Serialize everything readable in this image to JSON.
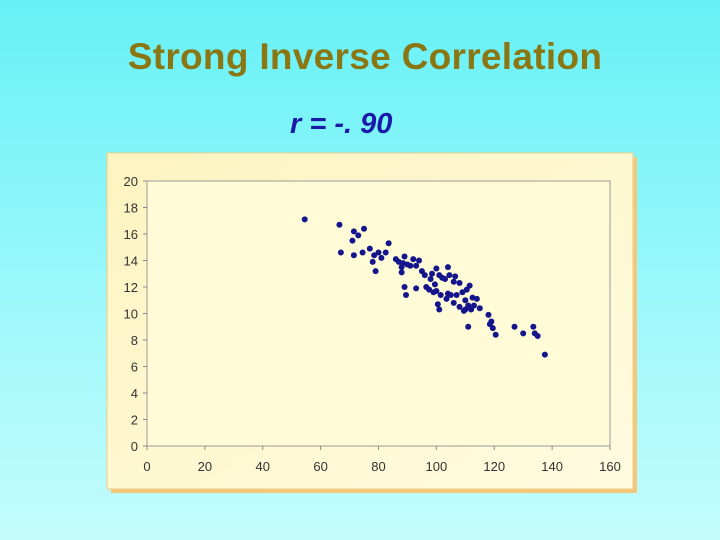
{
  "slide": {
    "title": "Strong Inverse Correlation",
    "subtitle": "r = -. 90"
  },
  "colors": {
    "background_top": "#66f1f6",
    "background_bottom": "#c4fcfd",
    "title": "#8a7612",
    "subtitle": "#1a1aa8",
    "chart_area": "#fef8c8",
    "plot_area": "#fefbd6",
    "marker": "#14148c"
  },
  "chart_data": {
    "type": "scatter",
    "title": "",
    "xlabel": "",
    "ylabel": "",
    "xlim": [
      0,
      160
    ],
    "ylim": [
      0,
      20
    ],
    "x_ticks": [
      0,
      20,
      40,
      60,
      80,
      100,
      120,
      140,
      160
    ],
    "y_ticks": [
      0,
      2,
      4,
      6,
      8,
      10,
      12,
      14,
      16,
      18,
      20
    ],
    "grid": false,
    "legend": "none",
    "points": [
      [
        54.5,
        17.1
      ],
      [
        66.5,
        16.7
      ],
      [
        67,
        14.6
      ],
      [
        71,
        15.5
      ],
      [
        71.5,
        16.2
      ],
      [
        71.5,
        14.4
      ],
      [
        73,
        15.9
      ],
      [
        74.5,
        14.6
      ],
      [
        75,
        16.4
      ],
      [
        77,
        14.9
      ],
      [
        78,
        13.9
      ],
      [
        78.5,
        14.4
      ],
      [
        79,
        13.2
      ],
      [
        80,
        14.6
      ],
      [
        81,
        14.2
      ],
      [
        82.5,
        14.6
      ],
      [
        83.5,
        15.3
      ],
      [
        86,
        14.1
      ],
      [
        87,
        13.9
      ],
      [
        88,
        13.5
      ],
      [
        88.5,
        13.8
      ],
      [
        89,
        14.3
      ],
      [
        90,
        13.7
      ],
      [
        91,
        13.6
      ],
      [
        92,
        14.1
      ],
      [
        93,
        13.6
      ],
      [
        94,
        14.0
      ],
      [
        88,
        13.1
      ],
      [
        89,
        12.0
      ],
      [
        89.5,
        11.4
      ],
      [
        93,
        11.9
      ],
      [
        95,
        13.2
      ],
      [
        96,
        12.9
      ],
      [
        96.5,
        12.0
      ],
      [
        97.5,
        11.8
      ],
      [
        98,
        12.6
      ],
      [
        98.5,
        13.0
      ],
      [
        99,
        11.6
      ],
      [
        99.5,
        12.2
      ],
      [
        100,
        13.4
      ],
      [
        100,
        11.7
      ],
      [
        101,
        12.9
      ],
      [
        101.5,
        11.4
      ],
      [
        102,
        12.7
      ],
      [
        103,
        12.6
      ],
      [
        103.5,
        11.1
      ],
      [
        100.5,
        10.7
      ],
      [
        101,
        10.3
      ],
      [
        104,
        11.5
      ],
      [
        104.5,
        12.9
      ],
      [
        105,
        11.4
      ],
      [
        106,
        10.8
      ],
      [
        106.5,
        12.8
      ],
      [
        107,
        11.4
      ],
      [
        108,
        10.5
      ],
      [
        109,
        11.6
      ],
      [
        109.5,
        10.2
      ],
      [
        110,
        11.0
      ],
      [
        110.5,
        11.8
      ],
      [
        111,
        10.6
      ],
      [
        111.5,
        12.1
      ],
      [
        112,
        10.3
      ],
      [
        112.5,
        11.2
      ],
      [
        113,
        10.6
      ],
      [
        114,
        11.1
      ],
      [
        115,
        10.4
      ],
      [
        104,
        13.5
      ],
      [
        106,
        12.4
      ],
      [
        108,
        12.3
      ],
      [
        110,
        10.3
      ],
      [
        111,
        9.0
      ],
      [
        118,
        9.9
      ],
      [
        118.5,
        9.2
      ],
      [
        119,
        9.4
      ],
      [
        119.5,
        8.9
      ],
      [
        120.5,
        8.4
      ],
      [
        127,
        9.0
      ],
      [
        130,
        8.5
      ],
      [
        133.5,
        9.0
      ],
      [
        134,
        8.5
      ],
      [
        135,
        8.3
      ],
      [
        137.5,
        6.9
      ]
    ]
  }
}
